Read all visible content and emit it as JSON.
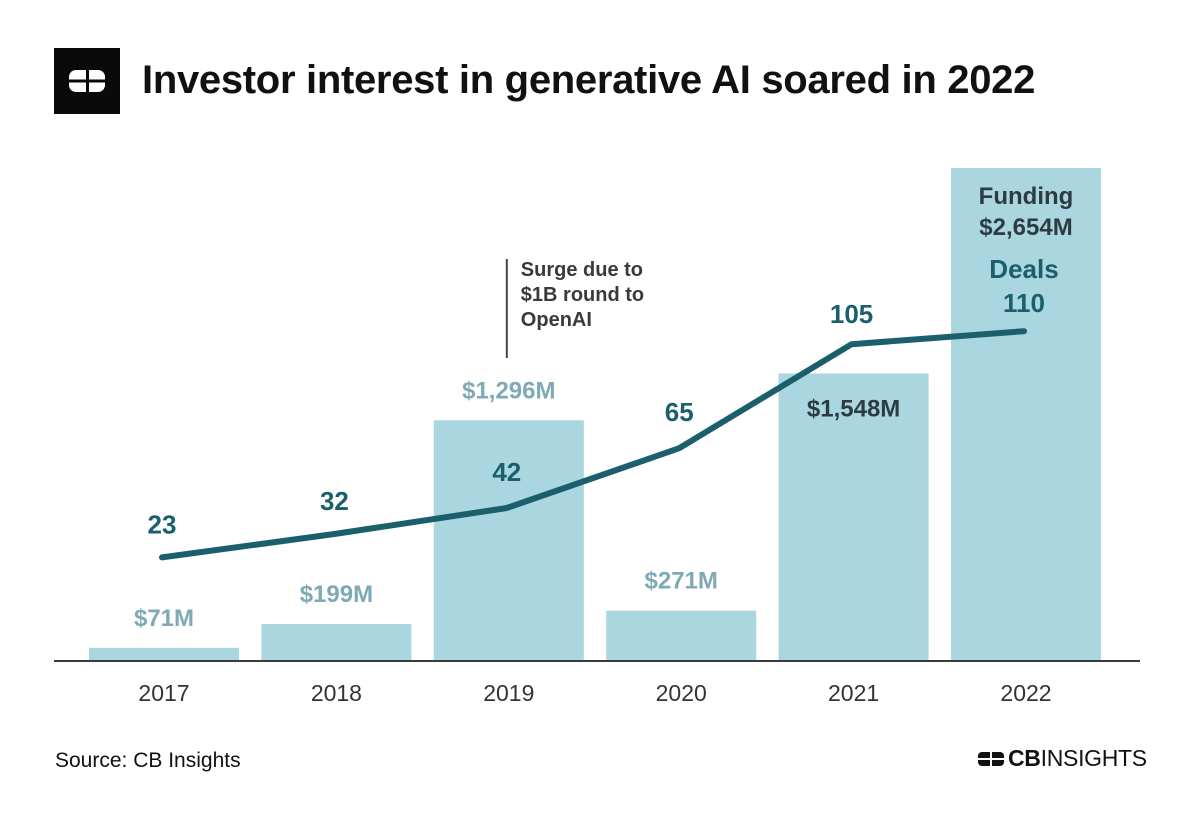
{
  "header": {
    "title": "Investor interest in generative AI soared in 2022",
    "logo_icon": "cb-insights-logo-icon"
  },
  "chart_data": {
    "type": "bar+line",
    "title": "Investor interest in generative AI soared in 2022",
    "categories": [
      "2017",
      "2018",
      "2019",
      "2020",
      "2021",
      "2022"
    ],
    "series": [
      {
        "name": "Funding",
        "type": "bar",
        "unit": "$M",
        "values": [
          71,
          199,
          1296,
          271,
          1548,
          2654
        ],
        "labels": [
          "$71M",
          "$199M",
          "$1,296M",
          "$271M",
          "$1,548M",
          "$2,654M"
        ]
      },
      {
        "name": "Deals",
        "type": "line",
        "values": [
          23,
          32,
          42,
          65,
          105,
          110
        ],
        "labels": [
          "23",
          "32",
          "42",
          "65",
          "105",
          "110"
        ]
      }
    ],
    "legend": {
      "funding_label": "Funding",
      "deals_label": "Deals"
    },
    "annotation": {
      "category": "2019",
      "lines": [
        "Surge due to",
        "$1B round to",
        "OpenAI"
      ]
    },
    "colors": {
      "bar": "#aad6df",
      "line": "#1b5f6c",
      "bar_label_light": "#7fa9b5",
      "bar_label_dark": "#2e3b44",
      "axis": "#3a3a3a",
      "tick": "#333333"
    }
  },
  "footer": {
    "source": "Source: CB Insights",
    "brand_bold": "CB",
    "brand_light": "INSIGHTS",
    "brand_icon": "cb-insights-mark-icon"
  }
}
